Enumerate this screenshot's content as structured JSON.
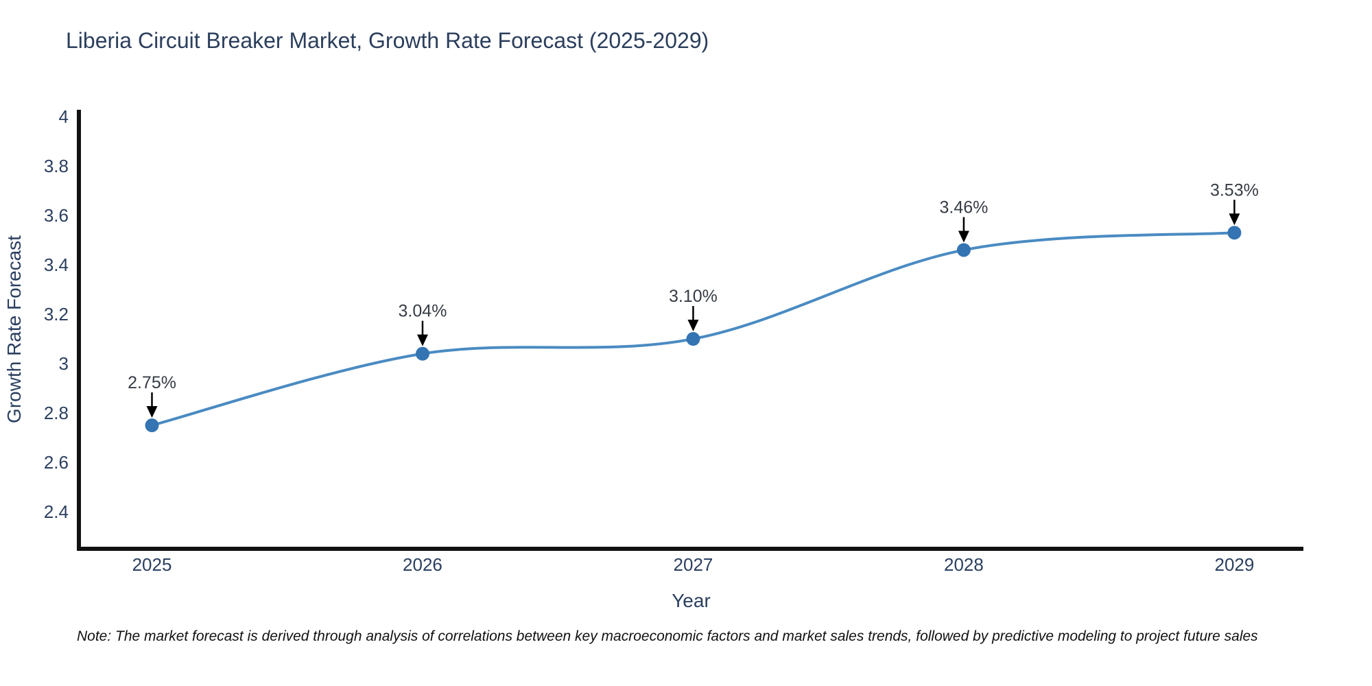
{
  "title": "Liberia Circuit Breaker Market, Growth Rate Forecast (2025-2029)",
  "note": "Note: The market forecast is derived through analysis of correlations between key macroeconomic factors and market sales trends, followed by predictive modeling to project future sales",
  "chart_data": {
    "type": "line",
    "title": "Liberia Circuit Breaker Market, Growth Rate Forecast (2025-2029)",
    "x": [
      2025,
      2026,
      2027,
      2028,
      2029
    ],
    "values": [
      2.75,
      3.04,
      3.1,
      3.46,
      3.53
    ],
    "point_labels": [
      "2.75%",
      "3.04%",
      "3.10%",
      "3.46%",
      "3.53%"
    ],
    "xtick_labels": [
      "2025",
      "2026",
      "2027",
      "2028",
      "2029"
    ],
    "yticks": [
      2.4,
      2.6,
      2.8,
      3,
      3.2,
      3.4,
      3.6,
      3.8,
      4
    ],
    "ytick_labels": [
      "2.4",
      "2.6",
      "2.8",
      "3",
      "3.2",
      "3.4",
      "3.6",
      "3.8",
      "4"
    ],
    "xlabel": "Year",
    "ylabel": "Growth Rate Forecast",
    "xlim": [
      2024.73,
      2029.255
    ],
    "ylim": [
      2.25,
      4.028
    ],
    "grid": false,
    "line_shape": "spline",
    "legend": "none",
    "colors": {
      "line": "#4a8bc2",
      "marker": "#3574b3",
      "axis": "#111111",
      "text": "#2a3f5f",
      "annotation_text": "#363c45",
      "annotation_arrow": "#000000"
    }
  }
}
